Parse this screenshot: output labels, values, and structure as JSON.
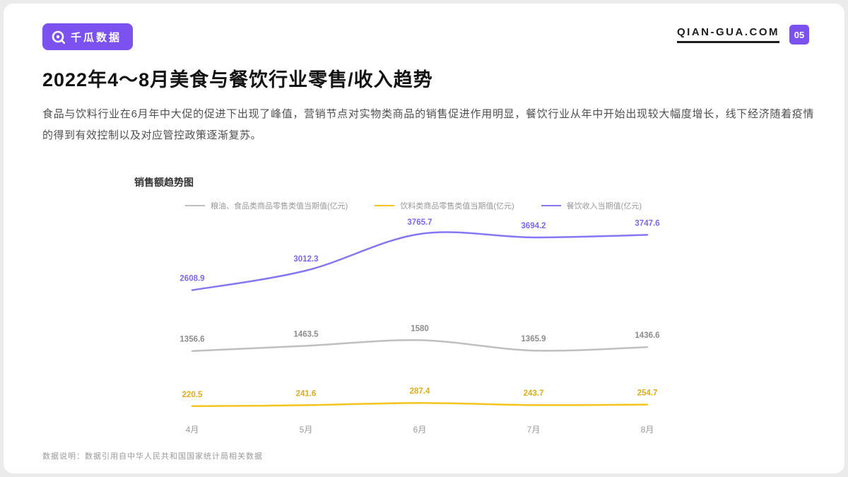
{
  "header": {
    "logo_text": "千瓜数据",
    "site_url": "QIAN-GUA.COM",
    "page_number": "05"
  },
  "title": "2022年4～8月美食与餐饮行业零售/收入趋势",
  "description": "食品与饮料行业在6月年中大促的促进下出现了峰值，营销节点对实物类商品的销售促进作用明显，餐饮行业从年中开始出现较大幅度增长，线下经济随着疫情的得到有效控制以及对应管控政策逐渐复苏。",
  "footnote": "数据说明：数据引用自中华人民共和国国家统计局相关数据",
  "colors": {
    "brand_purple": "#7b52f0",
    "line_gray": "#bfbfbf",
    "line_yellow": "#f3c51e",
    "line_purple": "#8577f3"
  },
  "chart_data": {
    "type": "line",
    "title": "销售额趋势图",
    "categories": [
      "4月",
      "5月",
      "6月",
      "7月",
      "8月"
    ],
    "series": [
      {
        "name": "粮油、食品类商品零售类值当期值(亿元)",
        "color": "#bfbfbf",
        "label_color": "#8c8c8c",
        "values": [
          1356.6,
          1463.5,
          1580,
          1365.9,
          1436.6
        ]
      },
      {
        "name": "饮料类商品零售类值当期值(亿元)",
        "color": "#f3c51e",
        "label_color": "#dfac1c",
        "values": [
          220.5,
          241.6,
          287.4,
          243.7,
          254.7
        ]
      },
      {
        "name": "餐饮收入当期值(亿元)",
        "color": "#8577f3",
        "label_color": "#7a68ee",
        "values": [
          2608.9,
          3012.3,
          3765.7,
          3694.2,
          3747.6
        ]
      }
    ],
    "ylim": [
      0,
      4200
    ],
    "grid": false,
    "legend_position": "top"
  }
}
